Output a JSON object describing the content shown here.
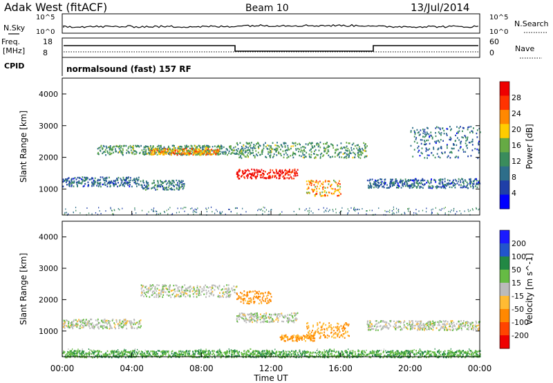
{
  "header": {
    "station": "Adak West (fitACF)",
    "beam": "Beam 10",
    "date": "13/Jul/2014"
  },
  "noise_panel": {
    "left_label": "N.Sky",
    "right_label": "N.Search",
    "left_ticks": [
      "10^5",
      "10^0"
    ],
    "right_ticks": [
      "10^5",
      "10^0"
    ]
  },
  "freq_panel": {
    "left_label_1": "Freq.",
    "left_label_2": "[MHz]",
    "right_label": "Nave",
    "left_ticks": [
      "18",
      "8"
    ],
    "right_ticks": [
      "60",
      "0"
    ],
    "cpid_label": "CPID",
    "cpid_text": "normalsound (fast) 157 RF"
  },
  "colors": {
    "power_scale": [
      "#0000ff",
      "#1f3fa8",
      "#2e6e8a",
      "#3a8c5c",
      "#66aa44",
      "#ffcc00",
      "#ff8800",
      "#ff3300",
      "#ee0000"
    ],
    "velocity_scale": [
      "#1a1aff",
      "#2255cc",
      "#228844",
      "#66bb44",
      "#bbbbbb",
      "#ffbb33",
      "#ff8800",
      "#ff4400",
      "#ee0000"
    ]
  },
  "chart_data": [
    {
      "type": "heatmap",
      "title": "",
      "ylabel": "Slant Range [km]",
      "y_ticks": [
        "1000",
        "2000",
        "3000",
        "4000"
      ],
      "ylim": [
        180,
        4500
      ],
      "colorbar_label": "Power [dB]",
      "colorbar_ticks": [
        "28",
        "24",
        "20",
        "16",
        "12",
        "8",
        "4"
      ],
      "bands": [
        {
          "x": [
            0,
            4.5
          ],
          "range": [
            1100,
            1400
          ],
          "power": 8
        },
        {
          "x": [
            4.5,
            7.0
          ],
          "range": [
            1000,
            1300
          ],
          "power": 10
        },
        {
          "x": [
            2.0,
            10.0
          ],
          "range": [
            2100,
            2400
          ],
          "power": 12
        },
        {
          "x": [
            5.0,
            9.0
          ],
          "range": [
            2100,
            2300
          ],
          "power": 20
        },
        {
          "x": [
            10.0,
            13.5
          ],
          "range": [
            1350,
            1650
          ],
          "power": 28
        },
        {
          "x": [
            10.0,
            17.5
          ],
          "range": [
            2000,
            2500
          ],
          "power": 12
        },
        {
          "x": [
            14.0,
            16.0
          ],
          "range": [
            800,
            1300
          ],
          "power": 20
        },
        {
          "x": [
            17.5,
            24.0
          ],
          "range": [
            1050,
            1350
          ],
          "power": 8
        },
        {
          "x": [
            20.0,
            24.0
          ],
          "range": [
            2000,
            3000
          ],
          "power": 8
        }
      ]
    },
    {
      "type": "heatmap",
      "title": "",
      "xlabel": "Time UT",
      "x_ticks": [
        "00:00",
        "04:00",
        "08:00",
        "12:00",
        "16:00",
        "20:00",
        "00:00"
      ],
      "xlim": [
        0,
        24
      ],
      "ylabel": "Slant Range [km]",
      "y_ticks": [
        "1000",
        "2000",
        "3000",
        "4000"
      ],
      "ylim": [
        180,
        4500
      ],
      "colorbar_label": "Velocity [m s^-1]",
      "colorbar_ticks": [
        "200",
        "100",
        "50",
        "15",
        "-15",
        "-50",
        "-100",
        "-200"
      ],
      "bands": [
        {
          "x": [
            0,
            4.5
          ],
          "range": [
            1100,
            1400
          ],
          "velocity": 0
        },
        {
          "x": [
            4.5,
            10.0
          ],
          "range": [
            2100,
            2500
          ],
          "velocity": 0
        },
        {
          "x": [
            10.0,
            12.0
          ],
          "range": [
            1900,
            2300
          ],
          "velocity": -60
        },
        {
          "x": [
            10.0,
            13.5
          ],
          "range": [
            1300,
            1600
          ],
          "velocity": 0
        },
        {
          "x": [
            14.0,
            16.5
          ],
          "range": [
            800,
            1300
          ],
          "velocity": -40
        },
        {
          "x": [
            12.5,
            14.5
          ],
          "range": [
            700,
            900
          ],
          "velocity": -50
        },
        {
          "x": [
            17.5,
            24.0
          ],
          "range": [
            1050,
            1350
          ],
          "velocity": 0
        },
        {
          "x": [
            0,
            24.0
          ],
          "range": [
            180,
            400
          ],
          "velocity": 30
        }
      ]
    }
  ]
}
